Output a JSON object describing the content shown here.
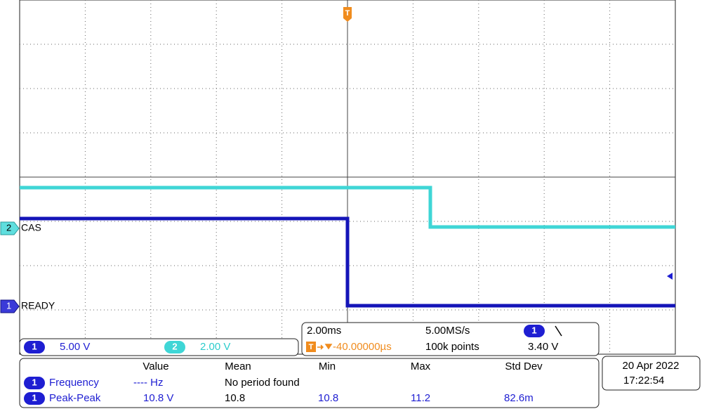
{
  "screen": {
    "trigger_marker": "T",
    "channels": [
      {
        "number": "1",
        "label": "READY",
        "scale": "5.00 V"
      },
      {
        "number": "2",
        "label": "CAS",
        "scale": "2.00 V"
      }
    ],
    "timebase": {
      "scale": "2.00ms",
      "sample_rate": "5.00MS/s",
      "trigger_position": "-40.00000µs",
      "record_length": "100k points"
    },
    "trigger": {
      "source": "1",
      "level": "3.40 V"
    },
    "measurements": {
      "headers": [
        "Value",
        "Mean",
        "Min",
        "Max",
        "Std Dev"
      ],
      "rows": [
        {
          "channel": "1",
          "name": "Frequency",
          "cells": [
            "---- Hz",
            "No period found"
          ]
        },
        {
          "channel": "1",
          "name": "Peak-Peak",
          "cells": [
            "10.8 V",
            "10.8",
            "10.8",
            "11.2",
            "82.6m"
          ]
        }
      ]
    },
    "datetime": {
      "date": "20 Apr 2022",
      "time": "17:22:54"
    }
  }
}
